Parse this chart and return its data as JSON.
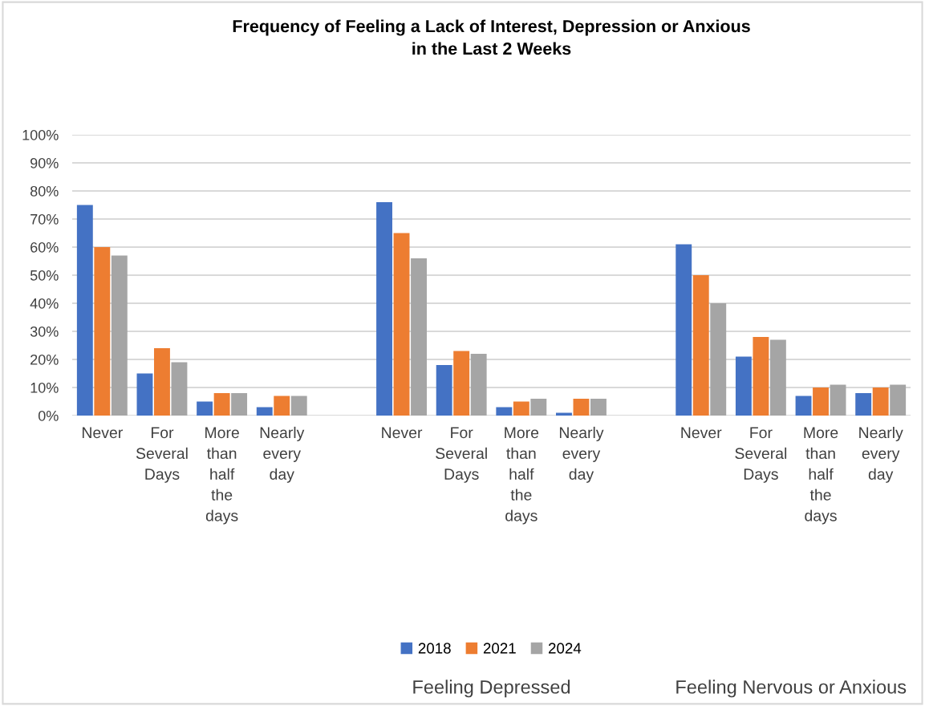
{
  "chart_data": {
    "type": "bar",
    "title": "Frequency of Feeling a Lack of Interest, Depression or Anxious\nin the Last 2 Weeks",
    "categories": [
      "Never",
      "For\nSeveral\nDays",
      "More\nthan\nhalf\nthe\ndays",
      "Nearly\nevery\nday",
      null,
      "Never",
      "For\nSeveral\nDays",
      "More\nthan\nhalf\nthe\ndays",
      "Nearly\nevery\nday",
      null,
      "Never",
      "For\nSeveral\nDays",
      "More\nthan\nhalf\nthe\ndays",
      "Nearly\nevery\nday"
    ],
    "series": [
      {
        "name": "2018",
        "color": "#4472c4",
        "values": [
          75,
          15,
          5,
          3,
          null,
          76,
          18,
          3,
          1,
          null,
          61,
          21,
          7,
          8
        ]
      },
      {
        "name": "2021",
        "color": "#ed7d31",
        "values": [
          60,
          24,
          8,
          7,
          null,
          65,
          23,
          5,
          6,
          null,
          50,
          28,
          10,
          10
        ]
      },
      {
        "name": "2024",
        "color": "#a5a5a5",
        "values": [
          57,
          19,
          8,
          7,
          null,
          56,
          22,
          6,
          6,
          null,
          40,
          27,
          11,
          11
        ]
      }
    ],
    "annotations": [
      "Feeling Depressed",
      "Feeling Nervous or Anxious"
    ],
    "ylim": [
      0,
      100
    ],
    "yticks": [
      {
        "value": 0,
        "label": "0%"
      },
      {
        "value": 10,
        "label": "10%"
      },
      {
        "value": 20,
        "label": "20%"
      },
      {
        "value": 30,
        "label": "30%"
      },
      {
        "value": 40,
        "label": "40%"
      },
      {
        "value": 50,
        "label": "50%"
      },
      {
        "value": 60,
        "label": "60%"
      },
      {
        "value": 70,
        "label": "70%"
      },
      {
        "value": 80,
        "label": "80%"
      },
      {
        "value": 90,
        "label": "90%"
      },
      {
        "value": 100,
        "label": "100%"
      }
    ],
    "grid": "y",
    "legend": "bottom"
  }
}
